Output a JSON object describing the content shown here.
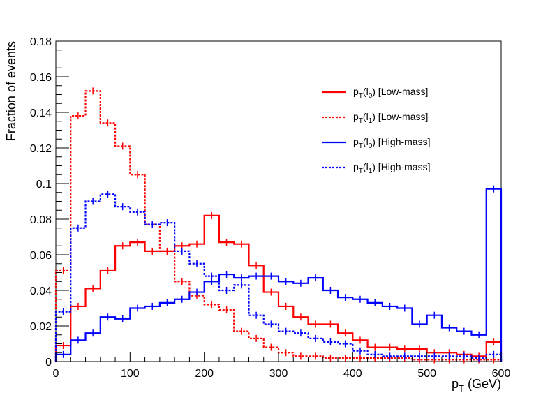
{
  "chart_data": {
    "type": "step-histogram",
    "xlabel": "p_T (GeV)",
    "ylabel": "Fraction of events",
    "xlim": [
      0,
      600
    ],
    "ylim": [
      0,
      0.18
    ],
    "bin_width": 20,
    "x_ticks": [
      0,
      100,
      200,
      300,
      400,
      500,
      600
    ],
    "x_tick_labels": [
      "0",
      "100",
      "200",
      "300",
      "400",
      "500",
      "600"
    ],
    "y_ticks": [
      0,
      0.02,
      0.04,
      0.06,
      0.08,
      0.1,
      0.12,
      0.14,
      0.16,
      0.18
    ],
    "y_tick_labels": [
      "0",
      "0.02",
      "0.04",
      "0.06",
      "0.08",
      "0.1",
      "0.12",
      "0.14",
      "0.16",
      "0.18"
    ],
    "legend_position": "top-right",
    "series": [
      {
        "name": "p_T(l_0) [Low-mass]",
        "legend": {
          "main": "p",
          "sub1": "T",
          "mid": "(l",
          "sub2": "0",
          "tail": ") [Low-mass]"
        },
        "color": "#ff0000",
        "style": "solid",
        "values": [
          0.009,
          0.031,
          0.041,
          0.051,
          0.065,
          0.067,
          0.062,
          0.062,
          0.065,
          0.066,
          0.082,
          0.067,
          0.066,
          0.054,
          0.039,
          0.031,
          0.025,
          0.021,
          0.021,
          0.016,
          0.012,
          0.008,
          0.008,
          0.007,
          0.007,
          0.005,
          0.005,
          0.004,
          0.003,
          0.011
        ]
      },
      {
        "name": "p_T(l_1) [Low-mass]",
        "legend": {
          "main": "p",
          "sub1": "T",
          "mid": "(l",
          "sub2": "1",
          "tail": ") [Low-mass]"
        },
        "color": "#ff0000",
        "style": "dashed",
        "values": [
          0.051,
          0.138,
          0.152,
          0.134,
          0.121,
          0.105,
          0.077,
          0.062,
          0.045,
          0.037,
          0.032,
          0.029,
          0.017,
          0.013,
          0.008,
          0.005,
          0.003,
          0.003,
          0.002,
          0.002,
          0.002,
          0.002,
          0.002,
          0.002,
          0.001,
          0.001,
          0.001,
          0.001,
          0.001,
          0.001
        ]
      },
      {
        "name": "p_T(l_0) [High-mass]",
        "legend": {
          "main": "p",
          "sub1": "T",
          "mid": "(l",
          "sub2": "0",
          "tail": ") [High-mass]"
        },
        "color": "#0000ff",
        "style": "solid",
        "values": [
          0.004,
          0.012,
          0.016,
          0.025,
          0.024,
          0.03,
          0.031,
          0.033,
          0.035,
          0.039,
          0.045,
          0.049,
          0.047,
          0.048,
          0.048,
          0.045,
          0.044,
          0.047,
          0.04,
          0.036,
          0.035,
          0.033,
          0.031,
          0.03,
          0.021,
          0.026,
          0.019,
          0.017,
          0.015,
          0.097
        ]
      },
      {
        "name": "p_T(l_1) [High-mass]",
        "legend": {
          "main": "p",
          "sub1": "T",
          "mid": "(l",
          "sub2": "1",
          "tail": ") [High-mass]"
        },
        "color": "#0000ff",
        "style": "dashed",
        "values": [
          0.028,
          0.075,
          0.09,
          0.094,
          0.087,
          0.084,
          0.077,
          0.078,
          0.062,
          0.055,
          0.048,
          0.04,
          0.043,
          0.026,
          0.021,
          0.017,
          0.016,
          0.013,
          0.011,
          0.01,
          0.006,
          0.004,
          0.003,
          0.003,
          0.003,
          0.003,
          0.003,
          0.003,
          0.002,
          0.004
        ]
      }
    ]
  }
}
